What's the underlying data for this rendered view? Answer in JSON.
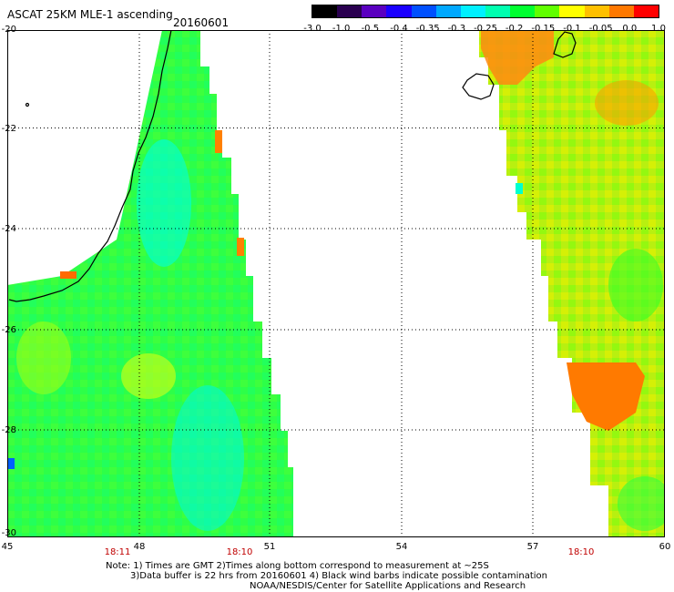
{
  "header": {
    "title": "ASCAT 25KM MLE-1 ascending",
    "date": "20160601"
  },
  "colorbar": {
    "tick_labels": [
      "-3.0",
      "-1.0",
      "-0.5",
      "-0.4",
      "-0.35",
      "-0.3",
      "-0.25",
      "-0.2",
      "-0.15",
      "-0.1",
      "-0.05",
      "0.0",
      "1.0"
    ],
    "colors": [
      "#000000",
      "#2a0050",
      "#5a00c0",
      "#1a00ff",
      "#0050ff",
      "#00a8ff",
      "#00f0ff",
      "#00ffb0",
      "#00ff30",
      "#60ff00",
      "#ffff00",
      "#ffc000",
      "#ff7800",
      "#ff0000"
    ]
  },
  "map": {
    "lat_labels": [
      "-20",
      "-22",
      "-24",
      "-26",
      "-28",
      "-30"
    ],
    "lon_labels": [
      "45",
      "48",
      "51",
      "54",
      "57",
      "60"
    ],
    "lat_range": [
      -30,
      -20
    ],
    "lon_range": [
      45,
      60
    ],
    "grid": "dotted",
    "pass_times": [
      {
        "label": "18:11",
        "lon": 47.4
      },
      {
        "label": "18:10",
        "lon": 50.3
      },
      {
        "label": "18:10",
        "lon": 58.1
      }
    ],
    "colors": {
      "ocean_swath": "#20ff40",
      "coast": "#000000",
      "background": "#ffffff"
    }
  },
  "notes": {
    "line1": "Note: 1) Times are GMT 2)Times along bottom correspond to measurement at ~25S",
    "line2": "3)Data buffer is 22 hrs from 20160601 4) Black wind barbs indicate possible contamination",
    "line3": "NOAA/NESDIS/Center for Satellite Applications and Research"
  }
}
